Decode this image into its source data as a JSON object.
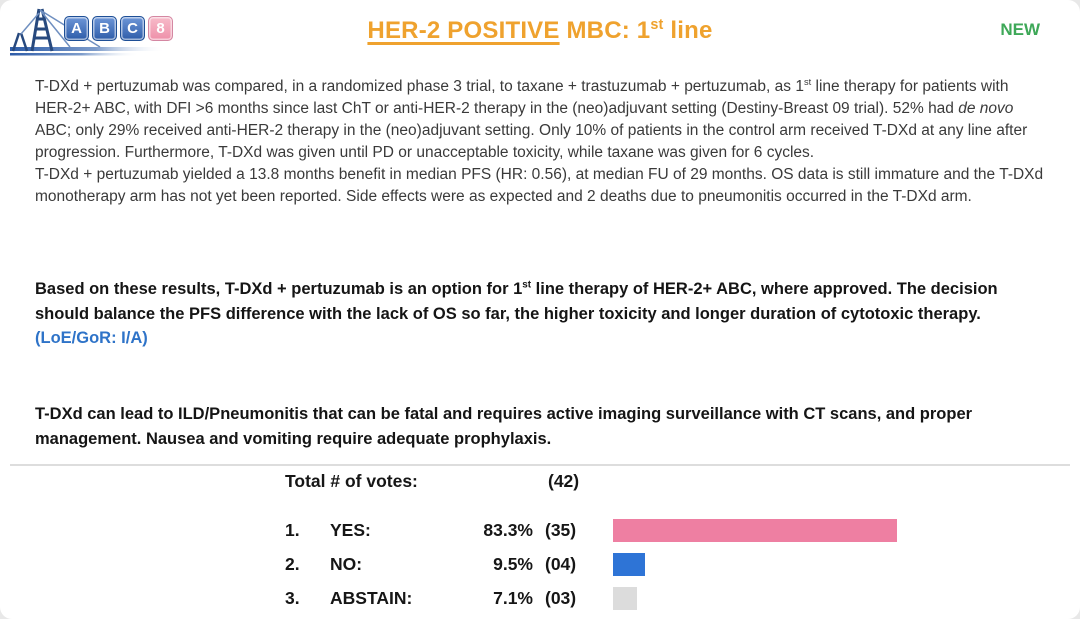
{
  "logo": {
    "letters": [
      "A",
      "B",
      "C"
    ],
    "number": "8",
    "bridge_color": "#27497e"
  },
  "header": {
    "title": {
      "underlined": "HER-2 POSITIVE",
      "rest_before_sup": " MBC: 1",
      "sup": "st",
      "rest_after_sup": " line"
    },
    "title_color": "#EFA22E",
    "badge": "NEW",
    "badge_color": "#3EA858"
  },
  "summary": {
    "p1_seg1": "T-DXd + pertuzumab was compared, in a randomized phase 3 trial, to taxane + trastuzumab + pertuzumab, as 1",
    "p1_sup": "st",
    "p1_seg2": " line therapy  for patients with HER-2+ ABC, with DFI >6 months since last ChT or anti-HER-2 therapy in the (neo)adjuvant setting (Destiny-Breast 09 trial). 52% had ",
    "p1_italic": "de novo",
    "p1_seg3": " ABC; only 29% received anti-HER-2 therapy in the (neo)adjuvant setting. Only 10% of patients in the control arm received T-DXd at any line after progression. Furthermore, T-DXd was given until PD or unacceptable toxicity, while taxane was given for 6 cycles.",
    "p2": "T-DXd + pertuzumab yielded a 13.8 months benefit in median PFS (HR: 0.56), at median FU of 29 months. OS data is still immature and the T-DXd monotherapy arm has not yet been reported. Side effects were as expected and 2 deaths due to pneumonitis occurred in the T-DXd arm."
  },
  "recommendation": {
    "seg1": "Based on these results, T-DXd + pertuzumab is an option for 1",
    "sup": "st",
    "seg2": " line therapy of HER-2+ ABC, where approved. The decision should balance the PFS difference with the lack of OS so far, the higher toxicity and longer duration of cytotoxic therapy.",
    "loe": "(LoE/GoR: I/A)",
    "loe_color": "#2E73C8"
  },
  "warning": "T-DXd can lead to ILD/Pneumonitis that can be fatal and requires active imaging surveillance with CT scans, and proper management. Nausea and vomiting require adequate prophylaxis.",
  "votes": {
    "total_label": "Total # of votes:",
    "total_value": "(42)",
    "rows": [
      {
        "num": "1.",
        "label": "YES:",
        "pct": "83.3%",
        "count": "(35)",
        "color": "#EE7FA2",
        "value": 83.3
      },
      {
        "num": "2.",
        "label": "NO:",
        "pct": "9.5%",
        "count": "(04)",
        "color": "#2E74D6",
        "value": 9.5
      },
      {
        "num": "3.",
        "label": "ABSTAIN:",
        "pct": "7.1%",
        "count": "(03)",
        "color": "#DCDCDC",
        "value": 7.1
      }
    ]
  },
  "chart_data": {
    "type": "bar",
    "orientation": "horizontal",
    "title": "Total # of votes: (42)",
    "categories": [
      "YES",
      "NO",
      "ABSTAIN"
    ],
    "values": [
      83.3,
      9.5,
      7.1
    ],
    "counts": [
      35,
      4,
      3
    ],
    "total_votes": 42,
    "unit": "%",
    "xlim": [
      0,
      100
    ],
    "colors": [
      "#EE7FA2",
      "#2E74D6",
      "#DCDCDC"
    ],
    "grid": false,
    "legend": false
  }
}
